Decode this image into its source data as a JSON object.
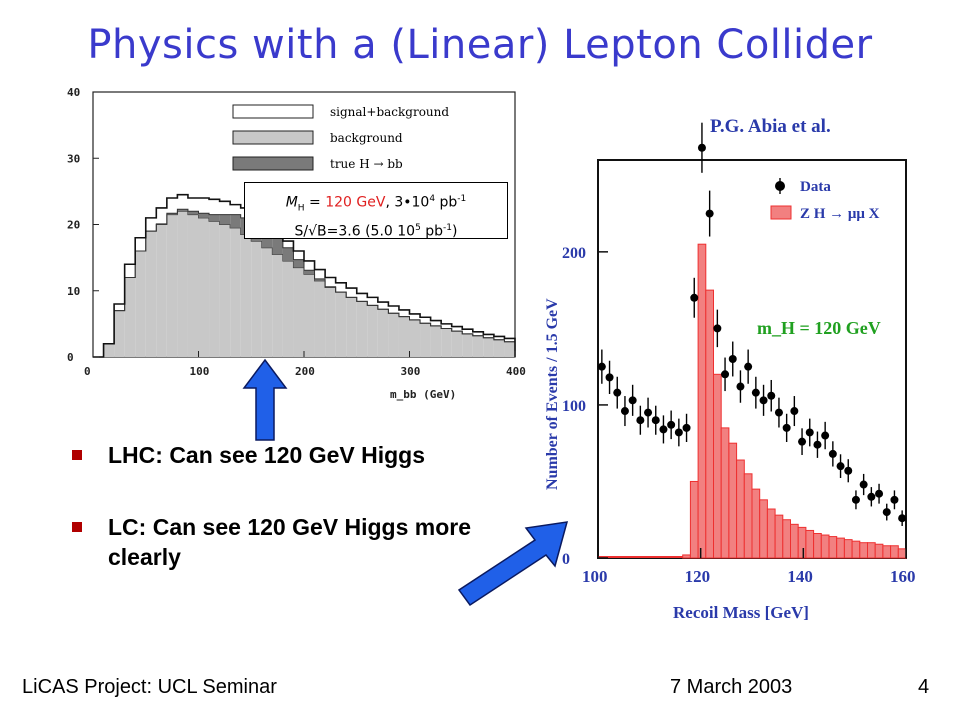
{
  "slide": {
    "title": "Physics with a (Linear) Lepton Collider",
    "page_number": "4"
  },
  "footer": {
    "left": "LiCAS Project: UCL Seminar",
    "date": "7 March 2003"
  },
  "infobox": {
    "mh_symbol": "M",
    "mh_sub": "H",
    "eq": " = ",
    "mass": "120 GeV",
    "lumi_prefix": ", 3•10",
    "lumi_exp": "4",
    "lumi_unit": " pb",
    "lumi_unit_exp": "-1",
    "sb_text": "S/√B=3.6 (5.0 10",
    "sb_exp": "5",
    "sb_unit": " pb",
    "sb_unit_exp": "-1",
    "sb_close": ")"
  },
  "bullets": [
    {
      "text": "LHC: Can see 120 GeV Higgs"
    },
    {
      "text": "LC: Can see 120 GeV Higgs more clearly"
    }
  ],
  "colors": {
    "title": "#3a3acc",
    "bullet_marker": "#b00000",
    "arrow_fill": "#2060e8",
    "highlight_red": "#e02020",
    "signal_hist_red": "#ee3030",
    "lc_axis_label_blue": "#2a3aaa"
  },
  "chart_data": [
    {
      "type": "bar",
      "name": "lhc-mbb-histogram",
      "xlabel": "m_bb (GeV)",
      "xlim": [
        0,
        400
      ],
      "ylim": [
        0,
        40
      ],
      "x_ticks": [
        "0",
        "100",
        "200",
        "300",
        "400"
      ],
      "y_ticks": [
        "0",
        "10",
        "20",
        "30",
        "40"
      ],
      "legend_placement": "top-right",
      "legend": [
        "signal+background",
        "background",
        "true H → bb"
      ],
      "bin_width": 10,
      "series": [
        {
          "name": "background",
          "values": [
            0,
            2,
            7,
            12,
            16,
            19,
            20,
            21.5,
            22,
            21.5,
            21,
            20.5,
            20,
            19.5,
            18.5,
            17.5,
            16.5,
            15.5,
            14.5,
            13.5,
            12.5,
            11.5,
            10.5,
            9.8,
            9,
            8.4,
            7.8,
            7.2,
            6.6,
            6.1,
            5.6,
            5.1,
            4.7,
            4.3,
            3.9,
            3.5,
            3.2,
            2.9,
            2.6,
            2.3
          ]
        },
        {
          "name": "true H → bb",
          "values": [
            0,
            0,
            0,
            0,
            0,
            0,
            0.1,
            0.2,
            0.3,
            0.5,
            0.7,
            1.0,
            1.5,
            2.0,
            2.5,
            3.0,
            3.3,
            2.8,
            2.0,
            1.2,
            0.6,
            0.3,
            0.1,
            0,
            0,
            0,
            0,
            0,
            0,
            0,
            0,
            0,
            0,
            0,
            0,
            0,
            0,
            0,
            0,
            0
          ]
        },
        {
          "name": "signal+background",
          "values": [
            0,
            2,
            8,
            14,
            18,
            21,
            22.5,
            24,
            24.5,
            24,
            24,
            23.8,
            23.5,
            23,
            22.5,
            21.5,
            20.5,
            19.5,
            17.5,
            16,
            14.5,
            13.2,
            12,
            11.2,
            10.4,
            9.6,
            9,
            8.3,
            7.7,
            7.1,
            6.5,
            6,
            5.5,
            5,
            4.6,
            4.2,
            3.8,
            3.4,
            3.1,
            2.8
          ]
        }
      ]
    },
    {
      "type": "scatter",
      "name": "lc-recoil-mass",
      "attribution": "P.G. Abia et al.",
      "xlabel": "Recoil Mass [GeV]",
      "ylabel": "Number of Events / 1.5 GeV",
      "xlim": [
        100,
        160
      ],
      "ylim": [
        0,
        260
      ],
      "x_ticks": [
        "100",
        "120",
        "140",
        "160"
      ],
      "y_ticks": [
        "0",
        "100",
        "200"
      ],
      "annotation": "m_H = 120 GeV",
      "legend_placement": "top-right",
      "legend": [
        "Data",
        "Z H → μμ X"
      ],
      "series": [
        {
          "name": "Data",
          "x": [
            100.75,
            102.25,
            103.75,
            105.25,
            106.75,
            108.25,
            109.75,
            111.25,
            112.75,
            114.25,
            115.75,
            117.25,
            118.75,
            120.25,
            121.75,
            123.25,
            124.75,
            126.25,
            127.75,
            129.25,
            130.75,
            132.25,
            133.75,
            135.25,
            136.75,
            138.25,
            139.75,
            141.25,
            142.75,
            144.25,
            145.75,
            147.25,
            148.75,
            150.25,
            151.75,
            153.25,
            154.75,
            156.25,
            157.75,
            159.25
          ],
          "y": [
            125,
            118,
            108,
            96,
            103,
            90,
            95,
            90,
            84,
            87,
            82,
            85,
            170,
            268,
            225,
            150,
            120,
            130,
            112,
            125,
            108,
            103,
            106,
            95,
            85,
            96,
            76,
            82,
            74,
            80,
            68,
            60,
            57,
            38,
            48,
            40,
            42,
            30,
            38,
            26
          ]
        },
        {
          "name": "Z H → μμ X",
          "x": [
            100.75,
            102.25,
            103.75,
            105.25,
            106.75,
            108.25,
            109.75,
            111.25,
            112.75,
            114.25,
            115.75,
            117.25,
            118.75,
            120.25,
            121.75,
            123.25,
            124.75,
            126.25,
            127.75,
            129.25,
            130.75,
            132.25,
            133.75,
            135.25,
            136.75,
            138.25,
            139.75,
            141.25,
            142.75,
            144.25,
            145.75,
            147.25,
            148.75,
            150.25,
            151.75,
            153.25,
            154.75,
            156.25,
            157.75,
            159.25
          ],
          "y": [
            0,
            0,
            0,
            0,
            0,
            0,
            0,
            0,
            0,
            0,
            0,
            2,
            50,
            205,
            175,
            120,
            85,
            75,
            64,
            55,
            45,
            38,
            32,
            28,
            25,
            22,
            20,
            18,
            16,
            15,
            14,
            13,
            12,
            11,
            10,
            10,
            9,
            8,
            8,
            6
          ]
        }
      ]
    }
  ]
}
